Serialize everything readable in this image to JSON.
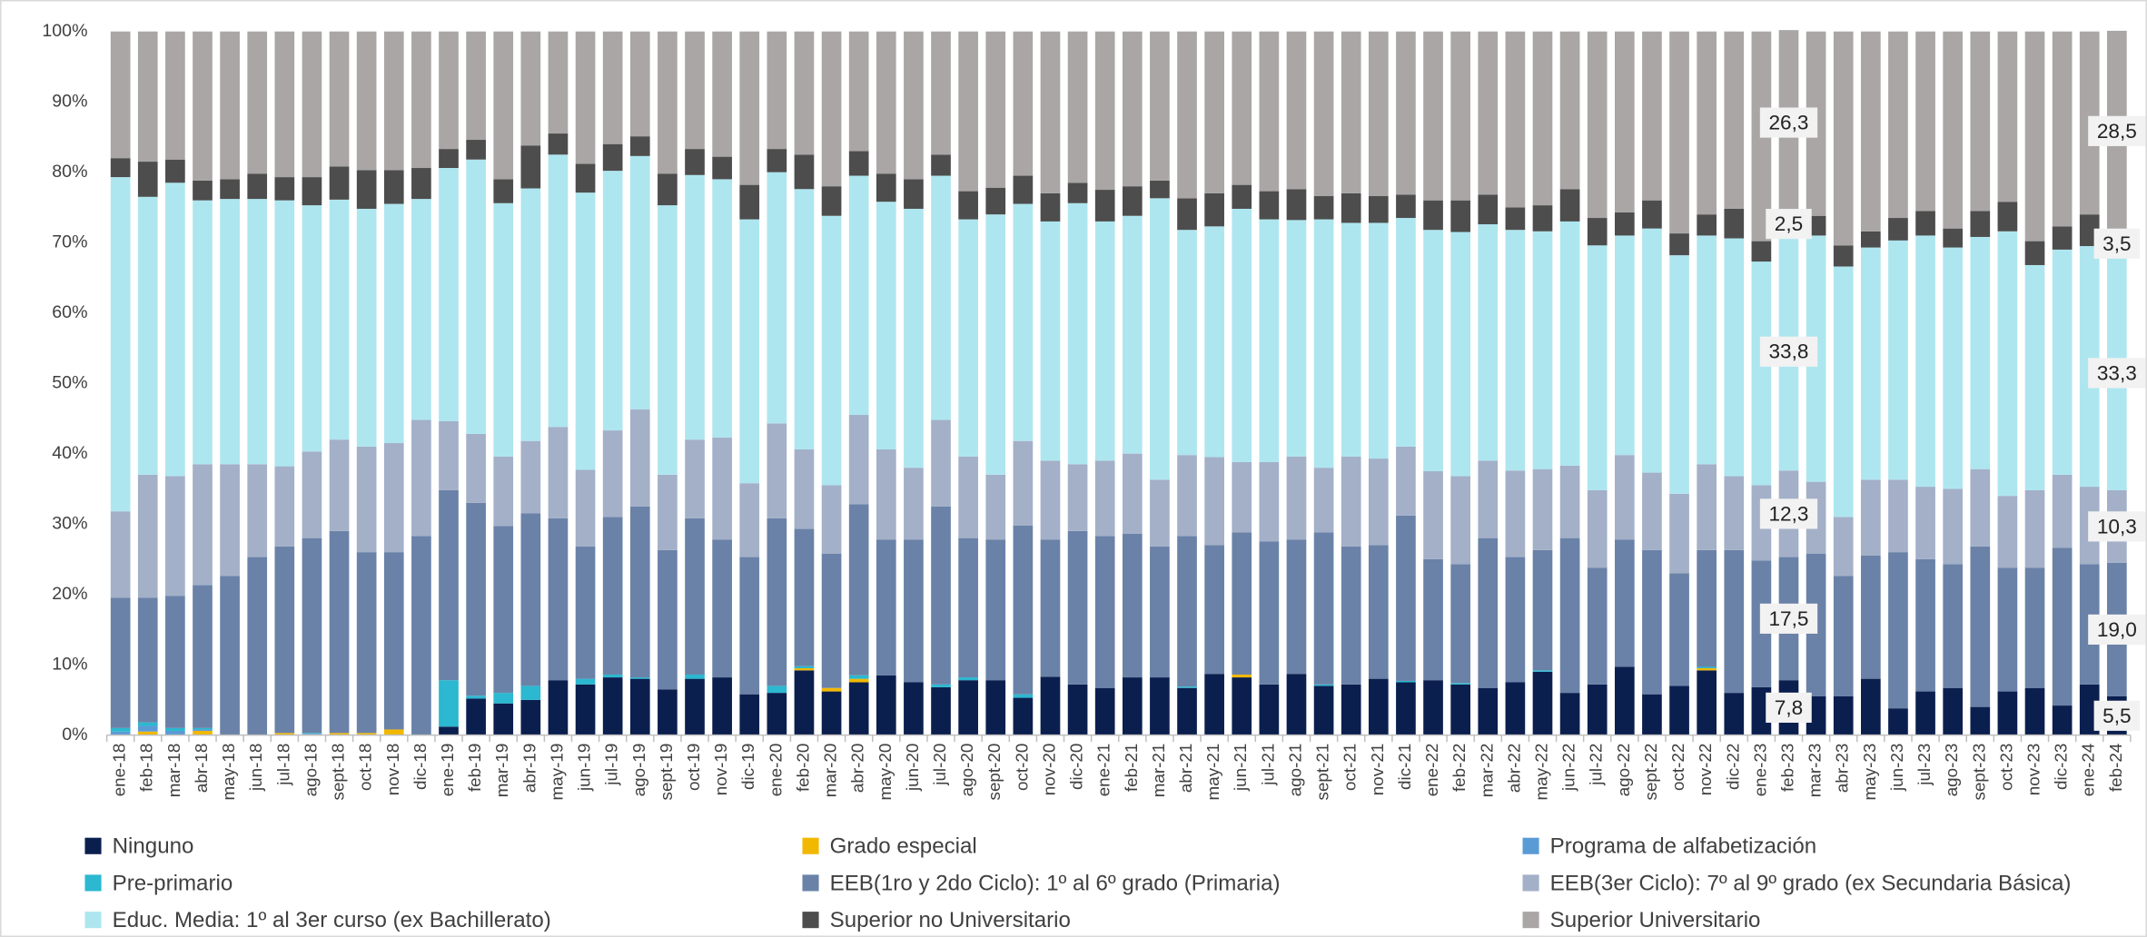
{
  "chart_data": {
    "type": "stacked_bar_100",
    "categories": [
      "ene-18",
      "feb-18",
      "mar-18",
      "abr-18",
      "may-18",
      "jun-18",
      "jul-18",
      "ago-18",
      "sept-18",
      "oct-18",
      "nov-18",
      "dic-18",
      "ene-19",
      "feb-19",
      "mar-19",
      "abr-19",
      "may-19",
      "jun-19",
      "jul-19",
      "ago-19",
      "sept-19",
      "oct-19",
      "nov-19",
      "dic-19",
      "ene-20",
      "feb-20",
      "mar-20",
      "abr-20",
      "may-20",
      "jun-20",
      "jul-20",
      "ago-20",
      "sept-20",
      "oct-20",
      "nov-20",
      "dic-20",
      "ene-21",
      "feb-21",
      "mar-21",
      "abr-21",
      "may-21",
      "jun-21",
      "jul-21",
      "ago-21",
      "sept-21",
      "oct-21",
      "nov-21",
      "dic-21",
      "ene-22",
      "feb-22",
      "mar-22",
      "abr-22",
      "may-22",
      "jun-22",
      "jul-22",
      "ago-22",
      "sept-22",
      "oct-22",
      "nov-22",
      "dic-22",
      "ene-23",
      "feb-23",
      "mar-23",
      "abr-23",
      "may-23",
      "jun-23",
      "jul-23",
      "ago-23",
      "sept-23",
      "oct-23",
      "nov-23",
      "dic-23",
      "ene-24",
      "feb-24"
    ],
    "series": [
      {
        "name": "Ninguno",
        "color": "#0b1f4f",
        "values": [
          0,
          0,
          0,
          0,
          0,
          0,
          0,
          0,
          0,
          0,
          0,
          0,
          1.2,
          5.2,
          4.5,
          5,
          7.8,
          7.2,
          8.2,
          8,
          6.5,
          8,
          8.2,
          5.8,
          6,
          9.2,
          6.2,
          7.5,
          8.5,
          7.5,
          6.8,
          7.8,
          7.8,
          5.3,
          8.3,
          7.2,
          6.7,
          8.2,
          8.2,
          6.7,
          8.7,
          8.2,
          7.2,
          8.7,
          7,
          7.2,
          8,
          7.5,
          7.8,
          7.2,
          6.7,
          7.5,
          9,
          6,
          7.2,
          9.7,
          5.8,
          7,
          9.2,
          6,
          6.8,
          7.8,
          5.5,
          5.5,
          8,
          3.8,
          6.2,
          6.7,
          4,
          6.2,
          6.7,
          4.2,
          7.2,
          5.5
        ],
        "value_labels": {
          "61": "7,8",
          "73": "5,5"
        }
      },
      {
        "name": "Grado especial",
        "color": "#f2b800",
        "values": [
          0,
          0.5,
          0,
          0.6,
          0,
          0,
          0.3,
          0.1,
          0.3,
          0.3,
          0.8,
          0,
          0,
          0,
          0,
          0,
          0,
          0,
          0,
          0,
          0,
          0,
          0,
          0,
          0,
          0.3,
          0.5,
          0.5,
          0,
          0,
          0,
          0,
          0,
          0,
          0,
          0,
          0,
          0,
          0,
          0,
          0,
          0.4,
          0,
          0,
          0,
          0,
          0,
          0,
          0,
          0,
          0,
          0,
          0,
          0,
          0,
          0,
          0,
          0,
          0.3,
          0,
          0,
          0,
          0,
          0,
          0,
          0,
          0,
          0,
          0,
          0,
          0,
          0,
          0,
          0
        ]
      },
      {
        "name": "Programa de alfabetización",
        "color": "#5b9bd5",
        "values": [
          0.5,
          0.8,
          0.6,
          0.2,
          0,
          0,
          0,
          0.1,
          0,
          0,
          0,
          0,
          0,
          0,
          0,
          0,
          0,
          0,
          0,
          0,
          0,
          0,
          0,
          0,
          0,
          0,
          0,
          0,
          0,
          0,
          0,
          0,
          0,
          0,
          0,
          0,
          0,
          0,
          0,
          0,
          0,
          0,
          0,
          0,
          0,
          0,
          0,
          0,
          0,
          0,
          0,
          0,
          0,
          0,
          0,
          0,
          0,
          0,
          0,
          0,
          0,
          0,
          0,
          0,
          0,
          0,
          0,
          0,
          0,
          0,
          0,
          0,
          0,
          0
        ]
      },
      {
        "name": "Pre-primario",
        "color": "#2bb8d0",
        "values": [
          0.5,
          0.5,
          0.4,
          0.2,
          0,
          0,
          0,
          0.1,
          0,
          0,
          0,
          0,
          6.6,
          0.4,
          1.5,
          2,
          0,
          0.8,
          0.4,
          0.2,
          0,
          0.6,
          0,
          0,
          1,
          0.3,
          0,
          0.5,
          0,
          0,
          0.4,
          0.4,
          0,
          0.5,
          0,
          0,
          0,
          0,
          0,
          0.2,
          0,
          0,
          0,
          0,
          0.2,
          0,
          0,
          0.2,
          0,
          0.2,
          0,
          0,
          0.2,
          0,
          0,
          0,
          0,
          0,
          0.2,
          0,
          0,
          0,
          0,
          0,
          0,
          0,
          0,
          0,
          0,
          0,
          0,
          0,
          0,
          0
        ]
      },
      {
        "name": "EEB(1ro y 2do Ciclo): 1º al 6º grado (Primaria)",
        "color": "#6a82a8",
        "values": [
          18.5,
          17.7,
          18.8,
          20.3,
          22.6,
          25.3,
          26.5,
          27.7,
          28.7,
          25.7,
          25.2,
          28.3,
          27,
          27.4,
          23.7,
          24.5,
          23,
          18.8,
          22.4,
          24.3,
          19.8,
          22.2,
          19.6,
          19.5,
          23.8,
          19.5,
          19.1,
          24.3,
          19.3,
          20.3,
          25.3,
          19.8,
          20,
          24,
          19.5,
          21.8,
          21.6,
          20.4,
          18.6,
          21.4,
          18.3,
          20.2,
          20.3,
          19.1,
          21.6,
          19.6,
          19,
          23.5,
          17.2,
          16.9,
          21.3,
          17.8,
          17.1,
          22,
          16.6,
          18.1,
          20.5,
          16,
          16.6,
          20.3,
          18,
          17.5,
          20.3,
          17.1,
          17.5,
          22.2,
          18.8,
          17.6,
          22.8,
          17.6,
          17.1,
          22.4,
          17.1,
          19.0
        ],
        "value_labels": {
          "61": "17,5",
          "73": "19,0"
        }
      },
      {
        "name": "EEB(3er Ciclo): 7º al 9º grado (ex  Secundaria Básica)",
        "color": "#a3b0c8",
        "values": [
          12.3,
          17.5,
          17,
          17.2,
          15.9,
          13.2,
          11.4,
          12.3,
          13,
          15,
          15.5,
          16.5,
          9.8,
          9.8,
          9.9,
          10.3,
          13,
          10.9,
          12.3,
          13.8,
          10.7,
          11.2,
          14.5,
          10.5,
          13.5,
          11.3,
          9.7,
          12.7,
          12.8,
          10.2,
          12.3,
          11.6,
          9.2,
          12,
          11.2,
          9.5,
          10.7,
          11.4,
          9.5,
          11.5,
          12.5,
          10,
          11.3,
          11.8,
          9.2,
          12.8,
          12.3,
          9.8,
          12.5,
          12.5,
          11,
          12.3,
          11.5,
          10.3,
          11,
          12,
          11,
          11.3,
          12.2,
          10.5,
          10.7,
          12.3,
          10.2,
          8.4,
          10.8,
          10.3,
          10.3,
          10.7,
          11,
          10.2,
          11,
          10.4,
          11,
          10.3
        ],
        "value_labels": {
          "61": "12,3",
          "73": "10,3"
        }
      },
      {
        "name": "Educ. Media: 1º al 3er curso (ex Bachillerato)",
        "color": "#aee6ef",
        "values": [
          47.5,
          39.5,
          41.7,
          37.5,
          37.7,
          37.7,
          37.8,
          35,
          34.1,
          33.8,
          34,
          31.4,
          36,
          39,
          36,
          35.9,
          38.7,
          39.4,
          36.9,
          36,
          38.3,
          37.6,
          36.7,
          37.5,
          35.7,
          37,
          38.3,
          34,
          35.2,
          36.8,
          34.7,
          33.7,
          37,
          33.7,
          34,
          37.1,
          34,
          33.8,
          40,
          32,
          32.8,
          36,
          34.5,
          33.6,
          35.3,
          33.2,
          33.5,
          32.5,
          34.3,
          34.7,
          33.6,
          34.2,
          33.8,
          34.7,
          34.8,
          31.2,
          34.7,
          33.9,
          32.5,
          33.8,
          31.8,
          33.8,
          35,
          35.6,
          33,
          34,
          35.7,
          34.3,
          33,
          37.6,
          32,
          32,
          34.2,
          33.3
        ],
        "value_labels": {
          "61": "33,8",
          "73": "33,3"
        }
      },
      {
        "name": "Superior no Universitario",
        "color": "#4d4d4d",
        "values": [
          2.7,
          5,
          3.3,
          2.8,
          2.8,
          3.6,
          3.3,
          4,
          4.7,
          5.5,
          4.8,
          4.4,
          2.7,
          2.8,
          3.4,
          6.1,
          3,
          4.1,
          3.8,
          2.8,
          4.5,
          3.7,
          3.2,
          4.9,
          3.3,
          4.9,
          4.2,
          3.5,
          4,
          4.2,
          3,
          4,
          3.8,
          4,
          4,
          2.9,
          4.5,
          4.2,
          2.5,
          4.5,
          4.7,
          3.4,
          4,
          4.4,
          3.3,
          4.2,
          3.8,
          3.3,
          4.2,
          4.5,
          4.2,
          3.2,
          3.7,
          4.6,
          3.9,
          3.3,
          4,
          3.1,
          3,
          4.2,
          2.9,
          2.5,
          2.8,
          3,
          2.3,
          3.2,
          3.5,
          2.7,
          3.7,
          4.2,
          3.4,
          3.3,
          4.5,
          3.5
        ],
        "value_labels": {
          "61": "2,5",
          "73": "3,5"
        }
      },
      {
        "name": "Superior Universitario",
        "color": "#aaa6a6",
        "values": [
          18,
          18.5,
          18.2,
          21.2,
          21,
          20.2,
          20.7,
          20.7,
          19.2,
          19.7,
          19.7,
          19.4,
          16.7,
          15.4,
          21,
          16.2,
          14.5,
          18.8,
          16,
          14.9,
          20.2,
          16.7,
          17.8,
          21.8,
          16.7,
          17.5,
          22,
          17,
          20.2,
          21,
          17.5,
          22.7,
          22.2,
          20.5,
          23,
          21.5,
          22.5,
          22,
          21.2,
          23.7,
          23,
          21.8,
          22.7,
          22.4,
          23.4,
          23,
          23.4,
          23.2,
          24,
          24,
          23.2,
          25,
          24.7,
          22.4,
          26.5,
          25.7,
          24,
          28.7,
          26,
          25.2,
          29.8,
          26.3,
          26.2,
          30.4,
          28.4,
          26.5,
          25.5,
          28,
          25.5,
          24.2,
          29.8,
          27.7,
          26,
          28.5
        ],
        "value_labels": {
          "61": "26,3",
          "73": "28,5"
        }
      }
    ],
    "ylim": [
      0,
      100
    ],
    "yticks": [
      {
        "value": 0,
        "label": "0%"
      },
      {
        "value": 10,
        "label": "10%"
      },
      {
        "value": 20,
        "label": "20%"
      },
      {
        "value": 30,
        "label": "30%"
      },
      {
        "value": 40,
        "label": "40%"
      },
      {
        "value": 50,
        "label": "50%"
      },
      {
        "value": 60,
        "label": "60%"
      },
      {
        "value": 70,
        "label": "70%"
      },
      {
        "value": 80,
        "label": "80%"
      },
      {
        "value": 90,
        "label": "90%"
      },
      {
        "value": 100,
        "label": "100%"
      }
    ],
    "grid": false,
    "legend": "bottom"
  }
}
